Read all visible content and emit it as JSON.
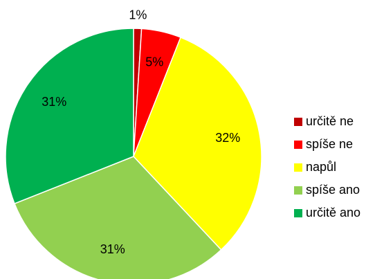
{
  "chart_data": {
    "type": "pie",
    "categories": [
      "určitě ne",
      "spíše ne",
      "napůl",
      "spíše ano",
      "určitě ano"
    ],
    "values": [
      1,
      5,
      32,
      31,
      31
    ],
    "value_labels": [
      "1%",
      "5%",
      "32%",
      "31%",
      "31%"
    ],
    "colors": [
      "#c00000",
      "#ff0000",
      "#ffff00",
      "#92d050",
      "#00b050"
    ],
    "legend": "right"
  }
}
